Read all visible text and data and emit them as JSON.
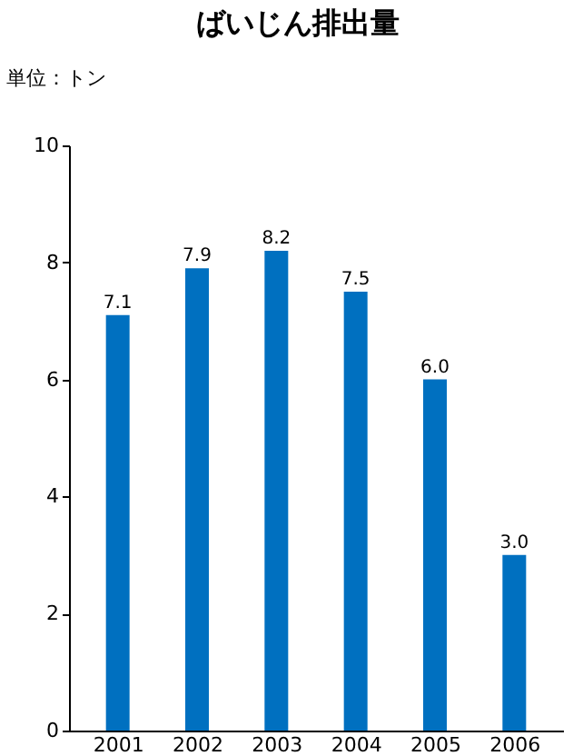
{
  "chart_data": {
    "type": "bar",
    "title": "ばいじん排出量",
    "ylabel": "単位：トン",
    "categories": [
      "2001",
      "2002",
      "2003",
      "2004",
      "2005",
      "2006"
    ],
    "values": [
      7.1,
      7.9,
      8.2,
      7.5,
      6.0,
      3.0
    ],
    "value_labels": [
      "7.1",
      "7.9",
      "8.2",
      "7.5",
      "6.0",
      "3.0"
    ],
    "color": "#0070c0",
    "ylim": [
      0,
      10
    ],
    "yticks": [
      0,
      2,
      4,
      6,
      8,
      10
    ],
    "grid": false
  }
}
